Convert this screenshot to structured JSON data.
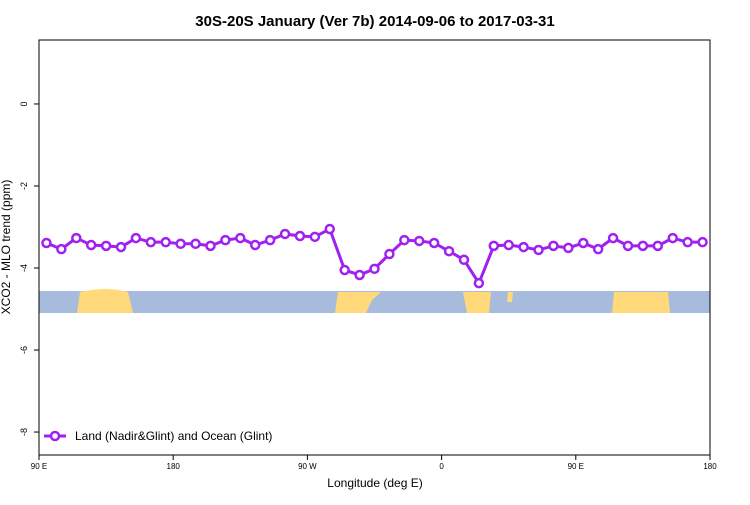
{
  "chart_data": {
    "type": "line",
    "title": "30S-20S January (Ver 7b)   2014-09-06 to 2017-03-31",
    "x_label": "Longitude (deg E)",
    "y_label": "XCO2 - MLO trend (ppm)",
    "x": [
      95,
      105,
      115,
      125,
      135,
      145,
      155,
      165,
      175,
      185,
      195,
      205,
      215,
      225,
      235,
      245,
      255,
      265,
      275,
      285,
      295,
      305,
      315,
      325,
      335,
      345,
      355,
      365,
      375,
      385,
      395,
      405,
      415,
      425,
      435,
      445,
      455,
      465,
      475,
      485,
      495,
      505,
      515,
      525,
      535
    ],
    "series": [
      {
        "name": "Land (Nadir&Glint) and Ocean (Glint)",
        "color": "#a020f0",
        "values": [
          -3.39,
          -3.54,
          -3.27,
          -3.44,
          -3.46,
          -3.49,
          -3.27,
          -3.37,
          -3.37,
          -3.41,
          -3.41,
          -3.46,
          -3.32,
          -3.27,
          -3.44,
          -3.32,
          -3.17,
          -3.22,
          -3.24,
          -3.05,
          -4.05,
          -4.17,
          -4.02,
          -3.66,
          -3.32,
          -3.34,
          -3.39,
          -3.59,
          -3.8,
          -4.37,
          -3.46,
          -3.44,
          -3.49,
          -3.56,
          -3.46,
          -3.51,
          -3.39,
          -3.54,
          -3.27,
          -3.46,
          -3.46,
          -3.46,
          -3.27,
          -3.37,
          -3.37
        ]
      }
    ],
    "xlim": [
      90,
      540
    ],
    "xticks": [
      {
        "value": 90,
        "label": "90 E"
      },
      {
        "value": 180,
        "label": "180"
      },
      {
        "value": 270,
        "label": "90 W"
      },
      {
        "value": 360,
        "label": "0"
      },
      {
        "value": 450,
        "label": "90 E"
      },
      {
        "value": 540,
        "label": "180"
      }
    ],
    "ylim": [
      -8.56,
      1.56
    ],
    "yticks": [
      0,
      -2,
      -4,
      -6,
      -8
    ],
    "legend": "bottom-left"
  }
}
